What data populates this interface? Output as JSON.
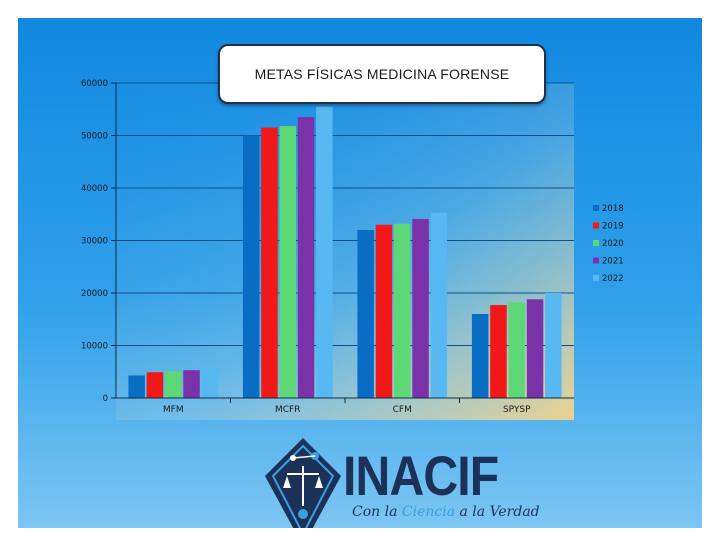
{
  "slide": {
    "title": "METAS FÍSICAS MEDICINA FORENSE"
  },
  "chart_data": {
    "type": "bar",
    "title": "METAS FÍSICAS MEDICINA FORENSE",
    "categories": [
      "MFM",
      "MCFR",
      "CFM",
      "SPYSP"
    ],
    "series": [
      {
        "name": "2018",
        "color": "#0a6dc4",
        "values": [
          4300,
          50000,
          32000,
          16000
        ]
      },
      {
        "name": "2019",
        "color": "#f01818",
        "values": [
          4900,
          51500,
          33000,
          17700
        ]
      },
      {
        "name": "2020",
        "color": "#5ed876",
        "values": [
          5100,
          51800,
          33200,
          18200
        ]
      },
      {
        "name": "2021",
        "color": "#7a32a8",
        "values": [
          5300,
          53500,
          34100,
          18800
        ]
      },
      {
        "name": "2022",
        "color": "#58b8f2",
        "values": [
          5900,
          55500,
          35300,
          20000
        ]
      }
    ],
    "ylim": [
      0,
      60000
    ],
    "yticks": [
      "0",
      "10000",
      "20000",
      "30000",
      "40000",
      "50000",
      "60000"
    ],
    "grid": true,
    "legend": "right"
  },
  "logo": {
    "name": "INACIF",
    "tagline_parts": [
      "Con la ",
      "Ciencia",
      " a la Verdad"
    ]
  },
  "colors": {
    "background": "#1a8fe3",
    "plot_area": "#f0d090",
    "accent": "#1c3158"
  }
}
